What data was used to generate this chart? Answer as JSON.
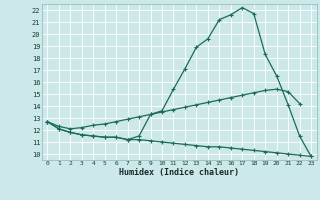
{
  "bg_color": "#cde8e8",
  "grid_color": "#b8d8d8",
  "line_color": "#1a6b5a",
  "xlabel": "Humidex (Indice chaleur)",
  "xlim": [
    -0.5,
    23.5
  ],
  "ylim": [
    9.5,
    22.5
  ],
  "xticks": [
    0,
    1,
    2,
    3,
    4,
    5,
    6,
    7,
    8,
    9,
    10,
    11,
    12,
    13,
    14,
    15,
    16,
    17,
    18,
    19,
    20,
    21,
    22,
    23
  ],
  "yticks": [
    10,
    11,
    12,
    13,
    14,
    15,
    16,
    17,
    18,
    19,
    20,
    21,
    22
  ],
  "x_all": [
    0,
    1,
    2,
    3,
    4,
    5,
    6,
    7,
    8,
    9,
    10,
    11,
    12,
    13,
    14,
    15,
    16,
    17,
    18,
    19,
    20,
    21,
    22,
    23
  ],
  "line1_y": [
    12.7,
    12.1,
    11.8,
    11.6,
    11.5,
    11.4,
    11.4,
    11.2,
    11.5,
    13.3,
    13.6,
    15.4,
    17.1,
    18.9,
    19.6,
    21.2,
    21.6,
    22.2,
    21.7,
    18.3,
    16.5,
    14.1,
    11.5,
    9.8
  ],
  "line2_y": [
    12.7,
    12.3,
    12.1,
    12.2,
    12.4,
    12.5,
    12.7,
    12.9,
    13.1,
    13.3,
    13.5,
    13.7,
    13.9,
    14.1,
    14.3,
    14.5,
    14.7,
    14.9,
    15.1,
    15.3,
    15.4,
    15.2,
    14.2,
    null
  ],
  "line3_y": [
    12.7,
    12.1,
    11.8,
    11.6,
    11.5,
    11.4,
    11.4,
    11.2,
    11.2,
    11.1,
    11.0,
    10.9,
    10.8,
    10.7,
    10.6,
    10.6,
    10.5,
    10.4,
    10.3,
    10.2,
    10.1,
    10.0,
    9.9,
    9.8
  ]
}
